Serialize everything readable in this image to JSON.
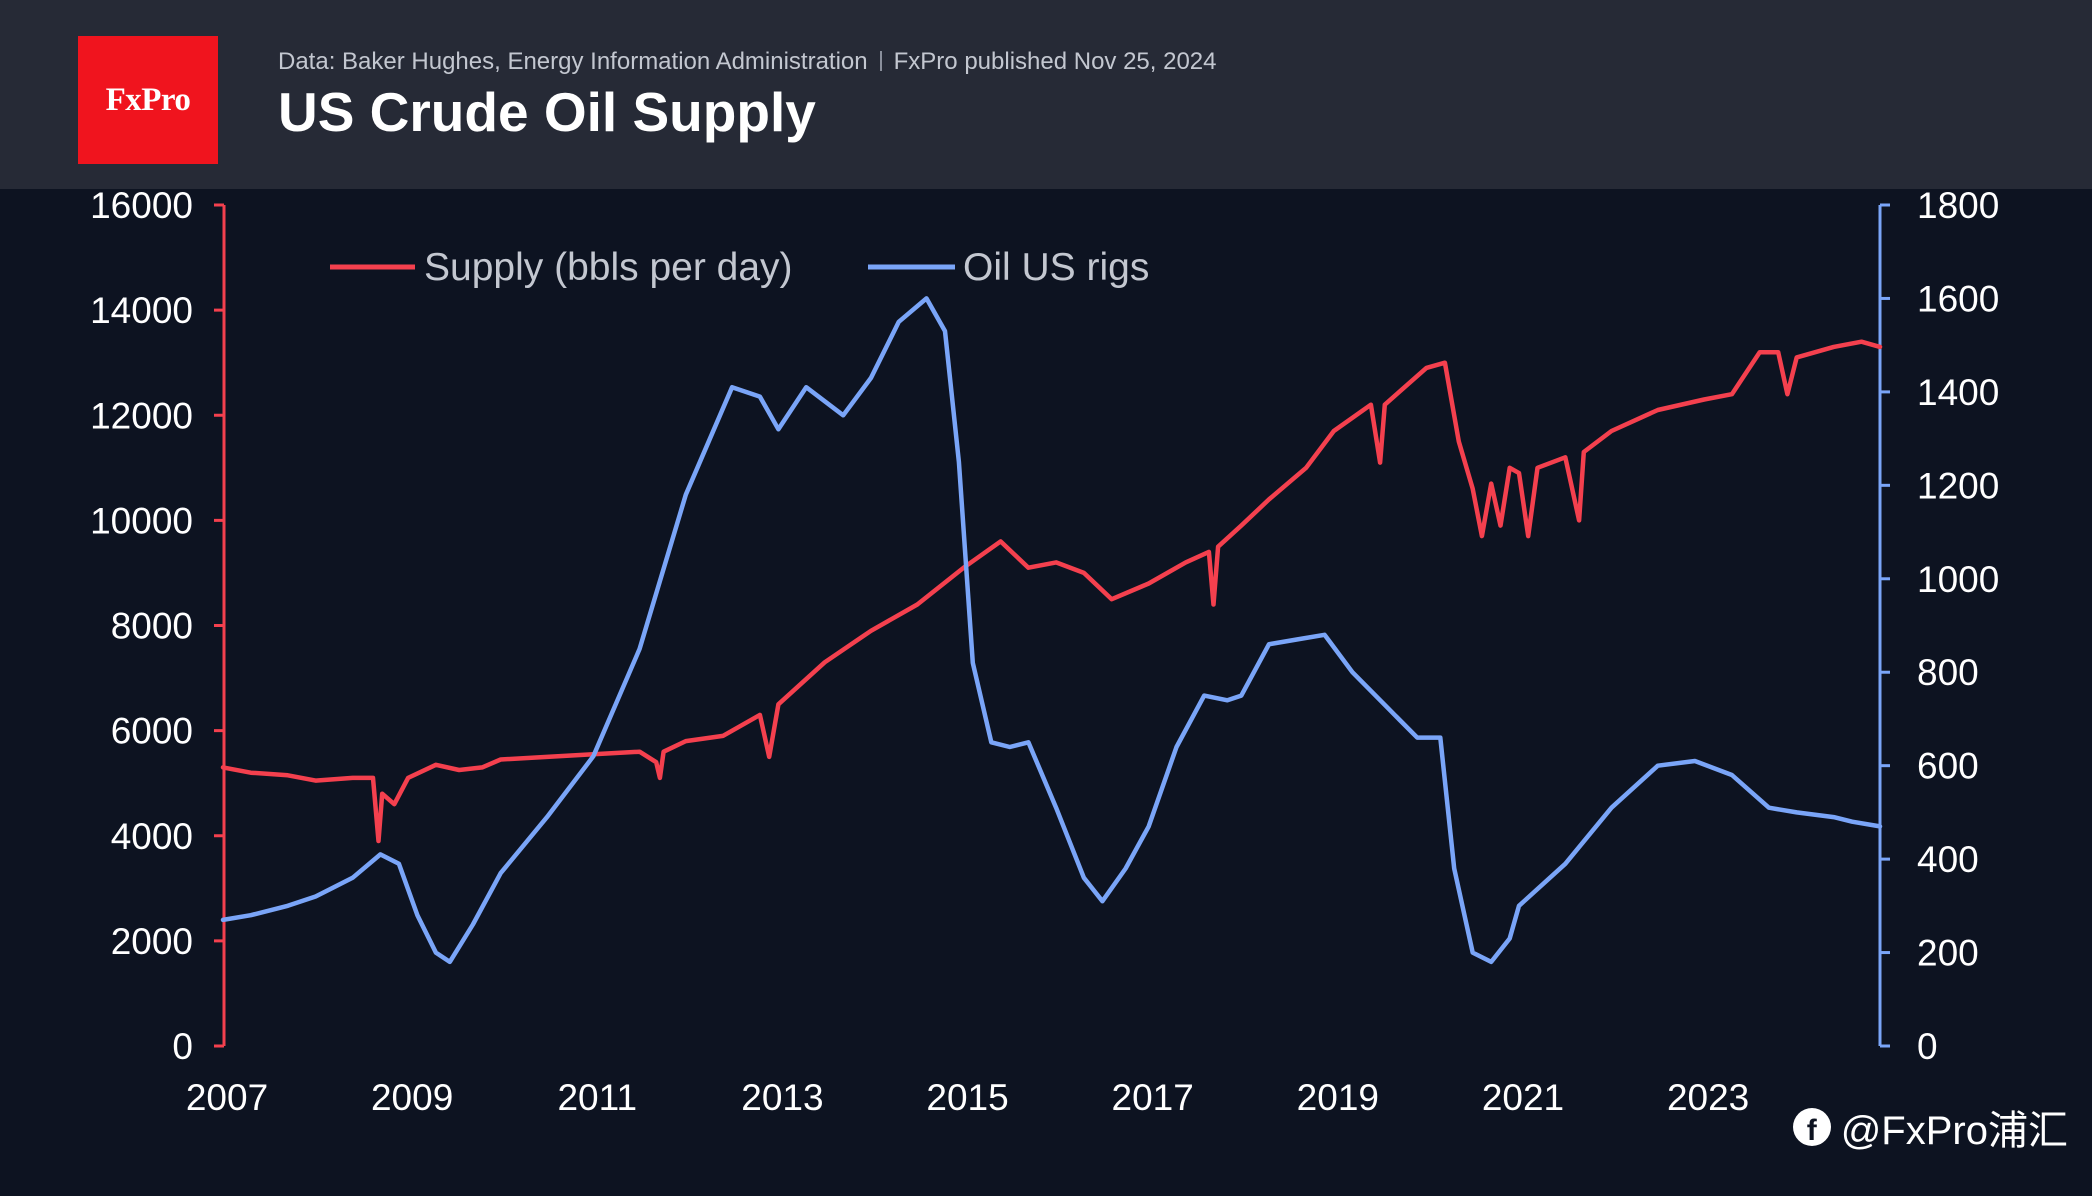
{
  "header": {
    "logo_text": "FxPro",
    "source_text": "Data: Baker Hughes, Energy Information Administration",
    "published_text": "FxPro published Nov 25, 2024",
    "title": "US Crude Oil Supply"
  },
  "watermark": {
    "text": "@FxPro浦汇",
    "icon": "facebook-icon"
  },
  "colors": {
    "background": "#0d1321",
    "header_background": "#262a36",
    "logo_red": "#f0141e",
    "supply": "#f4404e",
    "rigs": "#7aa5f8",
    "axis_text": "#ffffff",
    "legend_text": "#c3c7d0"
  },
  "chart_data": {
    "type": "line",
    "legend_placement": "top-left",
    "grid": false,
    "xlim": [
      2007.0,
      2024.9
    ],
    "x_ticks": [
      "2007",
      "2009",
      "2011",
      "2013",
      "2015",
      "2017",
      "2019",
      "2021",
      "2023"
    ],
    "y_left": {
      "lim": [
        0,
        16000
      ],
      "ticks": [
        "0",
        "2000",
        "4000",
        "6000",
        "8000",
        "10000",
        "12000",
        "14000",
        "16000"
      ]
    },
    "y_right": {
      "lim": [
        0,
        1800
      ],
      "ticks": [
        "0",
        "200",
        "400",
        "600",
        "800",
        "1000",
        "1200",
        "1400",
        "1600",
        "1800"
      ]
    },
    "series": [
      {
        "name": "Supply (bbls per day)",
        "axis": "left",
        "points": [
          [
            2007.0,
            5300
          ],
          [
            2007.3,
            5200
          ],
          [
            2007.7,
            5150
          ],
          [
            2008.0,
            5050
          ],
          [
            2008.4,
            5100
          ],
          [
            2008.62,
            5100
          ],
          [
            2008.68,
            3900
          ],
          [
            2008.72,
            4800
          ],
          [
            2008.85,
            4600
          ],
          [
            2009.0,
            5100
          ],
          [
            2009.3,
            5350
          ],
          [
            2009.55,
            5250
          ],
          [
            2009.8,
            5300
          ],
          [
            2010.0,
            5450
          ],
          [
            2010.5,
            5500
          ],
          [
            2011.0,
            5550
          ],
          [
            2011.5,
            5600
          ],
          [
            2011.68,
            5400
          ],
          [
            2011.72,
            5100
          ],
          [
            2011.76,
            5600
          ],
          [
            2012.0,
            5800
          ],
          [
            2012.4,
            5900
          ],
          [
            2012.8,
            6300
          ],
          [
            2012.9,
            5500
          ],
          [
            2013.0,
            6500
          ],
          [
            2013.5,
            7300
          ],
          [
            2014.0,
            7900
          ],
          [
            2014.5,
            8400
          ],
          [
            2015.0,
            9100
          ],
          [
            2015.4,
            9600
          ],
          [
            2015.7,
            9100
          ],
          [
            2016.0,
            9200
          ],
          [
            2016.3,
            9000
          ],
          [
            2016.6,
            8500
          ],
          [
            2017.0,
            8800
          ],
          [
            2017.4,
            9200
          ],
          [
            2017.65,
            9400
          ],
          [
            2017.7,
            8400
          ],
          [
            2017.75,
            9500
          ],
          [
            2018.0,
            9900
          ],
          [
            2018.3,
            10400
          ],
          [
            2018.7,
            11000
          ],
          [
            2019.0,
            11700
          ],
          [
            2019.4,
            12200
          ],
          [
            2019.5,
            11100
          ],
          [
            2019.55,
            12200
          ],
          [
            2020.0,
            12900
          ],
          [
            2020.2,
            13000
          ],
          [
            2020.35,
            11500
          ],
          [
            2020.5,
            10600
          ],
          [
            2020.6,
            9700
          ],
          [
            2020.7,
            10700
          ],
          [
            2020.8,
            9900
          ],
          [
            2020.9,
            11000
          ],
          [
            2021.0,
            10900
          ],
          [
            2021.1,
            9700
          ],
          [
            2021.2,
            11000
          ],
          [
            2021.5,
            11200
          ],
          [
            2021.65,
            10000
          ],
          [
            2021.7,
            11300
          ],
          [
            2022.0,
            11700
          ],
          [
            2022.5,
            12100
          ],
          [
            2023.0,
            12300
          ],
          [
            2023.3,
            12400
          ],
          [
            2023.6,
            13200
          ],
          [
            2023.8,
            13200
          ],
          [
            2023.9,
            12400
          ],
          [
            2024.0,
            13100
          ],
          [
            2024.4,
            13300
          ],
          [
            2024.7,
            13400
          ],
          [
            2024.9,
            13300
          ]
        ]
      },
      {
        "name": "Oil US rigs",
        "axis": "right",
        "points": [
          [
            2007.0,
            270
          ],
          [
            2007.3,
            280
          ],
          [
            2007.7,
            300
          ],
          [
            2008.0,
            320
          ],
          [
            2008.4,
            360
          ],
          [
            2008.7,
            410
          ],
          [
            2008.9,
            390
          ],
          [
            2009.1,
            280
          ],
          [
            2009.3,
            200
          ],
          [
            2009.45,
            180
          ],
          [
            2009.7,
            260
          ],
          [
            2010.0,
            370
          ],
          [
            2010.5,
            490
          ],
          [
            2011.0,
            620
          ],
          [
            2011.5,
            850
          ],
          [
            2012.0,
            1180
          ],
          [
            2012.5,
            1410
          ],
          [
            2012.8,
            1390
          ],
          [
            2013.0,
            1320
          ],
          [
            2013.3,
            1410
          ],
          [
            2013.7,
            1350
          ],
          [
            2014.0,
            1430
          ],
          [
            2014.3,
            1550
          ],
          [
            2014.6,
            1600
          ],
          [
            2014.8,
            1530
          ],
          [
            2014.95,
            1250
          ],
          [
            2015.1,
            820
          ],
          [
            2015.3,
            650
          ],
          [
            2015.5,
            640
          ],
          [
            2015.7,
            650
          ],
          [
            2016.0,
            510
          ],
          [
            2016.3,
            360
          ],
          [
            2016.5,
            310
          ],
          [
            2016.75,
            380
          ],
          [
            2017.0,
            470
          ],
          [
            2017.3,
            640
          ],
          [
            2017.6,
            750
          ],
          [
            2017.85,
            740
          ],
          [
            2018.0,
            750
          ],
          [
            2018.3,
            860
          ],
          [
            2018.6,
            870
          ],
          [
            2018.9,
            880
          ],
          [
            2019.2,
            800
          ],
          [
            2019.6,
            720
          ],
          [
            2019.9,
            660
          ],
          [
            2020.15,
            660
          ],
          [
            2020.3,
            380
          ],
          [
            2020.5,
            200
          ],
          [
            2020.7,
            180
          ],
          [
            2020.9,
            230
          ],
          [
            2021.0,
            300
          ],
          [
            2021.5,
            390
          ],
          [
            2022.0,
            510
          ],
          [
            2022.5,
            600
          ],
          [
            2022.9,
            610
          ],
          [
            2023.3,
            580
          ],
          [
            2023.7,
            510
          ],
          [
            2024.0,
            500
          ],
          [
            2024.4,
            490
          ],
          [
            2024.6,
            480
          ],
          [
            2024.9,
            470
          ]
        ]
      }
    ]
  }
}
